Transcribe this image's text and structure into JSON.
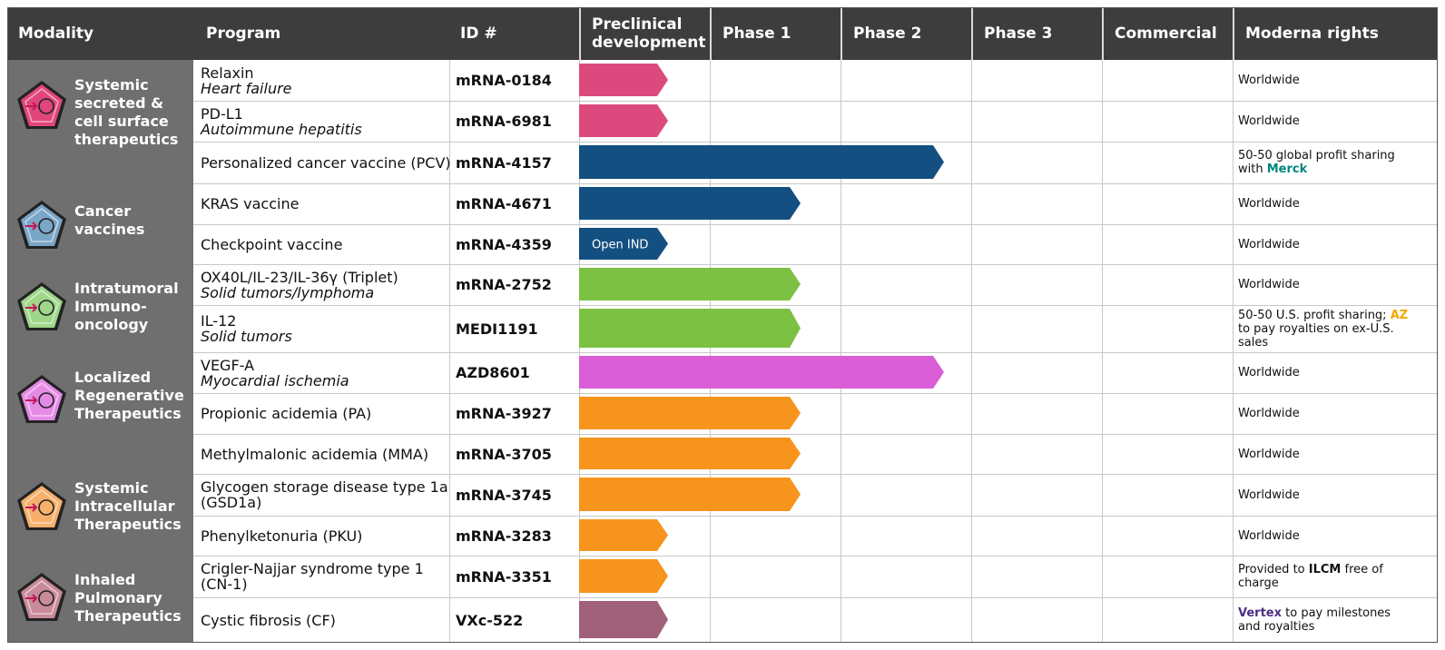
{
  "headers": {
    "modality": "Modality",
    "program": "Program",
    "id": "ID #",
    "preclinical": "Preclinical development",
    "phase1": "Phase 1",
    "phase2": "Phase 2",
    "phase3": "Phase 3",
    "commercial": "Commercial",
    "rights": "Moderna rights"
  },
  "modalities": [
    {
      "label": "Systemic secreted & cell surface therapeutics",
      "icon": "person-icon",
      "color": "#e0457b"
    },
    {
      "label": "Cancer vaccines",
      "icon": "antibody-icon",
      "color": "#7aa6c8"
    },
    {
      "label": "Intratumoral Immuno-oncology",
      "icon": "tumor-cell-icon",
      "color": "#9fd68a"
    },
    {
      "label": "Localized Regenerative Therapeutics",
      "icon": "tissue-icon",
      "color": "#e58be6"
    },
    {
      "label": "Systemic Intracellular Therapeutics",
      "icon": "cell-icon",
      "color": "#f7b06b"
    },
    {
      "label": "Inhaled Pulmonary Therapeutics",
      "icon": "lungs-icon",
      "color": "#c98a99"
    }
  ],
  "chart_data": {
    "type": "table",
    "stages": [
      "Preclinical development",
      "Phase 1",
      "Phase 2",
      "Phase 3",
      "Commercial"
    ],
    "programs": [
      {
        "name": "Relaxin",
        "indication": "Heart failure",
        "id": "mRNA-0184",
        "stage": "Preclinical development",
        "bar_color": "#dc4a7d",
        "rights": [
          "Worldwide"
        ]
      },
      {
        "name": "PD-L1",
        "indication": "Autoimmune hepatitis",
        "id": "mRNA-6981",
        "stage": "Preclinical development",
        "bar_color": "#dc4a7d",
        "rights": [
          "Worldwide"
        ]
      },
      {
        "name": "Personalized cancer vaccine (PCV)",
        "indication": "",
        "id": "mRNA-4157",
        "stage": "Phase 2",
        "bar_color": "#134f80",
        "rights": [
          "50-50 global profit sharing with ",
          "Merck"
        ]
      },
      {
        "name": "KRAS vaccine",
        "indication": "",
        "id": "mRNA-4671",
        "stage": "Phase 1",
        "bar_color": "#134f80",
        "rights": [
          "Worldwide"
        ]
      },
      {
        "name": "Checkpoint vaccine",
        "indication": "",
        "id": "mRNA-4359",
        "stage": "Preclinical development",
        "bar_color": "#134f80",
        "bar_label": "Open IND",
        "rights": [
          "Worldwide"
        ]
      },
      {
        "name": "OX40L/IL-23/IL-36γ (Triplet)",
        "indication": "Solid tumors/lymphoma",
        "id": "mRNA-2752",
        "stage": "Phase 1",
        "bar_color": "#7cc143",
        "rights": [
          "Worldwide"
        ]
      },
      {
        "name": "IL-12",
        "indication": "Solid tumors",
        "id": "MEDI1191",
        "stage": "Phase 1",
        "bar_color": "#7cc143",
        "rights": [
          "50-50 U.S. profit sharing; ",
          "AZ",
          " to pay royalties on ex-U.S. sales"
        ]
      },
      {
        "name": "VEGF-A",
        "indication": "Myocardial ischemia",
        "id": "AZD8601",
        "stage": "Phase 2",
        "bar_color": "#d95dd6",
        "rights": [
          "Worldwide"
        ]
      },
      {
        "name": "Propionic acidemia (PA)",
        "indication": "",
        "id": "mRNA-3927",
        "stage": "Phase 1",
        "bar_color": "#f7941d",
        "rights": [
          "Worldwide"
        ]
      },
      {
        "name": "Methylmalonic acidemia (MMA)",
        "indication": "",
        "id": "mRNA-3705",
        "stage": "Phase 1",
        "bar_color": "#f7941d",
        "rights": [
          "Worldwide"
        ]
      },
      {
        "name": "Glycogen storage disease type 1a (GSD1a)",
        "indication": "",
        "id": "mRNA-3745",
        "stage": "Phase 1",
        "bar_color": "#f7941d",
        "rights": [
          "Worldwide"
        ]
      },
      {
        "name": "Phenylketonuria (PKU)",
        "indication": "",
        "id": "mRNA-3283",
        "stage": "Preclinical development",
        "bar_color": "#f7941d",
        "rights": [
          "Worldwide"
        ]
      },
      {
        "name": "Crigler-Najjar syndrome type 1 (CN-1)",
        "indication": "",
        "id": "mRNA-3351",
        "stage": "Preclinical development",
        "bar_color": "#f7941d",
        "rights": [
          "Provided to ",
          "ILCM",
          " free of charge"
        ]
      },
      {
        "name": "Cystic fibrosis (CF)",
        "indication": "",
        "id": "VXc-522",
        "stage": "Preclinical development",
        "bar_color": "#a0607a",
        "rights": [
          "Vertex",
          " to pay milestones and royalties"
        ]
      }
    ],
    "highlight_colors": {
      "Merck": "#00857c",
      "AZ": "#f2a900",
      "ILCM": "#111111",
      "Vertex": "#4b2e83"
    }
  }
}
